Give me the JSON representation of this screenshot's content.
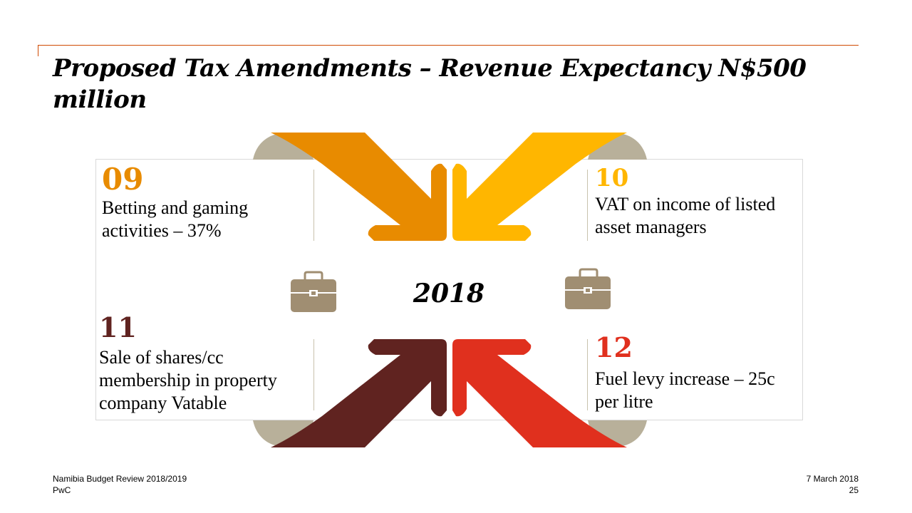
{
  "slide": {
    "title": "Proposed Tax Amendments – Revenue Expectancy N$500 million",
    "center_year": "2018",
    "items": [
      {
        "number": "09",
        "text": "Betting and gaming activities – 37%",
        "color": "#e88b00"
      },
      {
        "number": "10",
        "text": "VAT on income of listed asset managers",
        "color": "#ffb600"
      },
      {
        "number": "11",
        "text": "Sale of shares/cc membership in property company Vatable",
        "color": "#602320"
      },
      {
        "number": "12",
        "text": "Fuel levy increase – 25c per litre",
        "color": "#e0301e"
      }
    ],
    "icons": [
      "briefcase-icon",
      "briefcase-icon"
    ],
    "accent_color": "#d04a02",
    "shadow_color": "#b8b09a",
    "icon_color": "#a08e72"
  },
  "footer": {
    "left_line1": "Namibia Budget Review 2018/2019",
    "left_line2": "PwC",
    "date": "7 March 2018",
    "page": "25"
  }
}
